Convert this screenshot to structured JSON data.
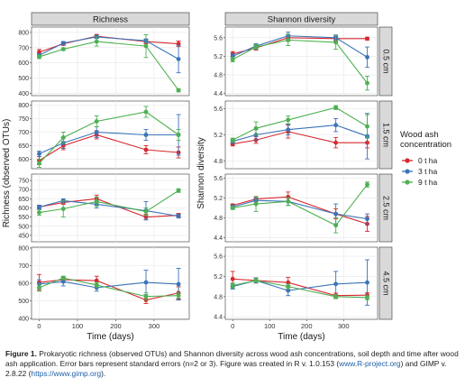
{
  "chart_data": {
    "type": "line",
    "x": [
      0,
      63,
      150,
      279,
      364
    ],
    "xlabel": "Time (days)",
    "x_ticks": [
      0,
      100,
      200,
      300
    ],
    "xlim": [
      -20,
      392
    ],
    "columns": [
      "Richness",
      "Shannon diversity"
    ],
    "rows": [
      "0.5 cm",
      "1.5 cm",
      "2.5 cm",
      "4.5 cm"
    ],
    "ylabels": [
      "Richness (observed OTUs)",
      "Shannon diversity"
    ],
    "legend": {
      "title_lines": [
        "Wood ash",
        "concentration"
      ],
      "placement": "right",
      "entries": [
        {
          "label": "0 t ha",
          "color": "#d6282e"
        },
        {
          "label": "3 t ha",
          "color": "#3a73b8"
        },
        {
          "label": "9 t ha",
          "color": "#4cb050"
        }
      ]
    },
    "facets": [
      {
        "col": 0,
        "row": 0,
        "ylim": [
          385,
          835
        ],
        "yticks": [
          400,
          500,
          600,
          700,
          800
        ],
        "series": [
          {
            "values": [
              670,
              725,
              775,
              740,
              725
            ],
            "err": [
              18,
              10,
              12,
              15,
              18
            ]
          },
          {
            "values": [
              650,
              730,
              770,
              745,
              625
            ],
            "err": [
              10,
              10,
              10,
              12,
              90
            ]
          },
          {
            "values": [
              640,
              690,
              740,
              710,
              420
            ],
            "err": [
              12,
              8,
              30,
              75,
              10
            ]
          }
        ]
      },
      {
        "col": 0,
        "row": 1,
        "ylim": [
          565,
          815
        ],
        "yticks": [
          600,
          650,
          700,
          750,
          800
        ],
        "series": [
          {
            "values": [
              595,
              650,
              690,
              635,
              625
            ],
            "err": [
              15,
              15,
              15,
              15,
              20
            ]
          },
          {
            "values": [
              620,
              660,
              700,
              690,
              690
            ],
            "err": [
              10,
              20,
              20,
              20,
              75
            ]
          },
          {
            "values": [
              585,
              680,
              740,
              775,
              690
            ],
            "err": [
              15,
              20,
              20,
              20,
              20
            ]
          }
        ]
      },
      {
        "col": 0,
        "row": 2,
        "ylim": [
          415,
          785
        ],
        "yticks": [
          450,
          500,
          550,
          600,
          650,
          700,
          750
        ],
        "series": [
          {
            "values": [
              605,
              630,
              650,
              550,
              560
            ],
            "err": [
              10,
              10,
              20,
              15,
              10
            ]
          },
          {
            "values": [
              605,
              640,
              620,
              585,
              555
            ],
            "err": [
              10,
              10,
              20,
              50,
              10
            ]
          },
          {
            "values": [
              575,
              595,
              635,
              580,
              695
            ],
            "err": [
              15,
              45,
              25,
              20,
              10
            ]
          }
        ]
      },
      {
        "col": 0,
        "row": 3,
        "ylim": [
          395,
          805
        ],
        "yticks": [
          400,
          500,
          600,
          700,
          800
        ],
        "series": [
          {
            "values": [
              605,
              620,
              615,
              505,
              545
            ],
            "err": [
              45,
              15,
              25,
              20,
              35
            ]
          },
          {
            "values": [
              595,
              610,
              575,
              605,
              595
            ],
            "err": [
              25,
              25,
              20,
              70,
              90
            ]
          },
          {
            "values": [
              575,
              630,
              590,
              525,
              530
            ],
            "err": [
              20,
              10,
              15,
              20,
              15
            ]
          }
        ]
      },
      {
        "col": 1,
        "row": 0,
        "ylim": [
          4.35,
          5.83
        ],
        "yticks": [
          4.4,
          4.8,
          5.2,
          5.6
        ],
        "series": [
          {
            "values": [
              5.25,
              5.38,
              5.6,
              5.58,
              5.58
            ],
            "err": [
              0.05,
              0.05,
              0.07,
              0.05,
              0.03
            ]
          },
          {
            "values": [
              5.2,
              5.42,
              5.64,
              5.6,
              5.18
            ],
            "err": [
              0.05,
              0.05,
              0.08,
              0.06,
              0.22
            ]
          },
          {
            "values": [
              5.13,
              5.4,
              5.55,
              5.5,
              4.62
            ],
            "err": [
              0.05,
              0.05,
              0.12,
              0.15,
              0.15
            ]
          }
        ]
      },
      {
        "col": 1,
        "row": 1,
        "ylim": [
          4.68,
          5.72
        ],
        "yticks": [
          4.8,
          5.2,
          5.6
        ],
        "series": [
          {
            "values": [
              5.06,
              5.12,
              5.25,
              5.08,
              5.08
            ],
            "err": [
              0.03,
              0.05,
              0.1,
              0.08,
              0.08
            ]
          },
          {
            "values": [
              5.1,
              5.2,
              5.28,
              5.35,
              5.18
            ],
            "err": [
              0.03,
              0.08,
              0.08,
              0.1,
              0.35
            ]
          },
          {
            "values": [
              5.12,
              5.3,
              5.43,
              5.62,
              5.33
            ],
            "err": [
              0.03,
              0.1,
              0.06,
              0.03,
              0.18
            ]
          }
        ]
      },
      {
        "col": 1,
        "row": 2,
        "ylim": [
          4.32,
          5.68
        ],
        "yticks": [
          4.4,
          4.8,
          5.2,
          5.6
        ],
        "series": [
          {
            "values": [
              5.05,
              5.18,
              5.22,
              4.88,
              4.68
            ],
            "err": [
              0.03,
              0.05,
              0.1,
              0.1,
              0.15
            ]
          },
          {
            "values": [
              5.02,
              5.15,
              5.13,
              4.88,
              4.78
            ],
            "err": [
              0.04,
              0.05,
              0.08,
              0.2,
              0.1
            ]
          },
          {
            "values": [
              5.0,
              5.08,
              5.13,
              4.65,
              5.47
            ],
            "err": [
              0.03,
              0.15,
              0.08,
              0.15,
              0.05
            ]
          }
        ]
      },
      {
        "col": 1,
        "row": 3,
        "ylim": [
          4.35,
          5.78
        ],
        "yticks": [
          4.4,
          4.8,
          5.2,
          5.6
        ],
        "series": [
          {
            "values": [
              5.15,
              5.12,
              5.08,
              4.82,
              4.83
            ],
            "err": [
              0.15,
              0.05,
              0.1,
              0.05,
              0.05
            ]
          },
          {
            "values": [
              5.0,
              5.12,
              4.92,
              5.05,
              5.08
            ],
            "err": [
              0.05,
              0.05,
              0.1,
              0.25,
              0.45
            ]
          },
          {
            "values": [
              5.02,
              5.12,
              5.0,
              4.8,
              4.78
            ],
            "err": [
              0.05,
              0.04,
              0.05,
              0.04,
              0.04
            ]
          }
        ]
      }
    ]
  },
  "caption": {
    "label": "Figure 1.",
    "text_before_link1": "Prokaryotic richness (observed OTUs) and Shannon diversity across wood ash concentrations, soil depth and time after wood ash application. Error bars represent standard errors (n=2 or 3). Figure was created in R v. 1.0.153 (",
    "link1": "www.R-project.org",
    "text_between": ") and GIMP v. 2.8.22 (",
    "link2": "https://www.gimp.org",
    "text_after": ")."
  }
}
